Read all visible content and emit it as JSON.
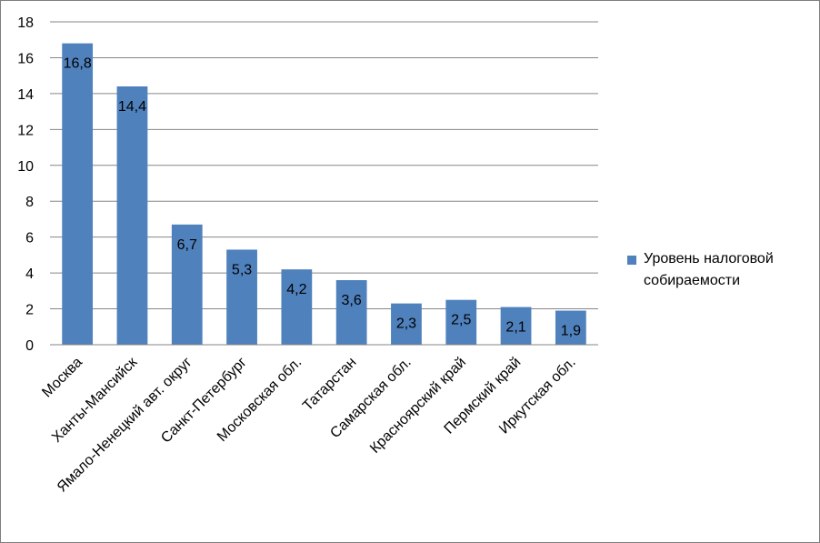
{
  "chart_data": {
    "type": "bar",
    "categories": [
      "Москва",
      "Ханты-Мансийск",
      "Ямало-Ненецкий авт. округ",
      "Санкт-Петербург",
      "Московская обл.",
      "Татарстан",
      "Самарская обл.",
      "Красноярский край",
      "Пермский край",
      "Иркутская обл."
    ],
    "series": [
      {
        "name": "Уровень налоговой собираемости",
        "values": [
          16.8,
          14.4,
          6.7,
          5.3,
          4.2,
          3.6,
          2.3,
          2.5,
          2.1,
          1.9
        ],
        "labels": [
          "16,8",
          "14,4",
          "6,7",
          "5,3",
          "4,2",
          "3,6",
          "2,3",
          "2,5",
          "2,1",
          "1,9"
        ]
      }
    ],
    "ylim": [
      0,
      18
    ],
    "yticks": [
      "0",
      "2",
      "4",
      "6",
      "8",
      "10",
      "12",
      "14",
      "16",
      "18"
    ],
    "grid": true,
    "legend": "right",
    "bar_color": "#4f81bd"
  }
}
